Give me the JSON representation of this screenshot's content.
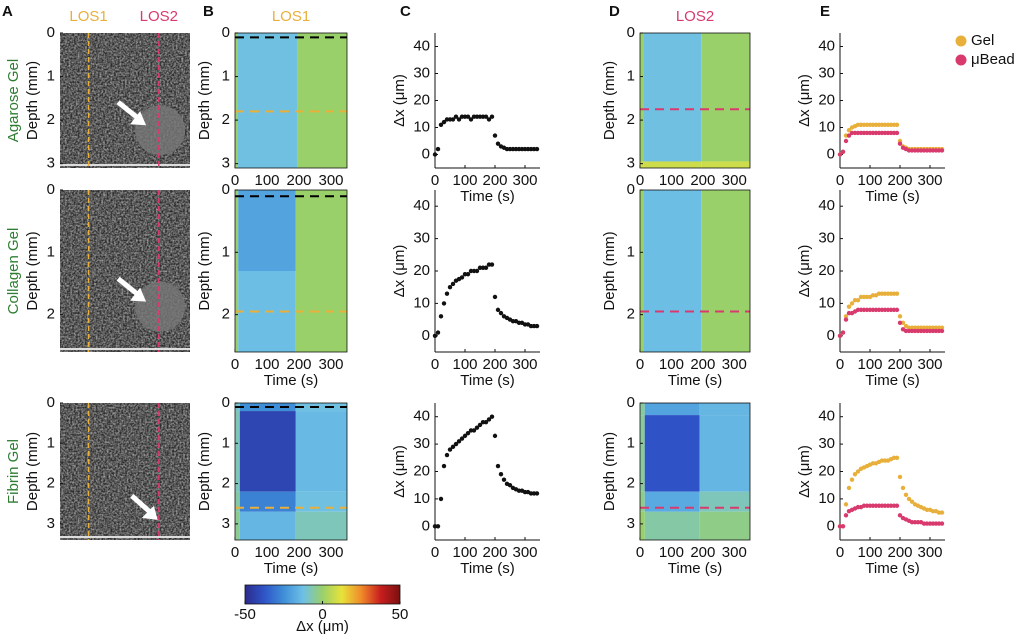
{
  "panel_labels": [
    "A",
    "B",
    "C",
    "D",
    "E"
  ],
  "chart_data": [
    {
      "type": "image",
      "row_label": "Agarose Gel",
      "ylabel": "Depth (mm)",
      "ylim": [
        0,
        3.1
      ],
      "yticks": [
        0,
        1,
        2,
        3
      ],
      "line_labels": [
        "LOS1",
        "LOS2"
      ],
      "line_colors": [
        "#e8b03a",
        "#d93a6e"
      ],
      "label_color": "#2e7d32"
    },
    {
      "type": "heatmap",
      "title": "LOS1",
      "title_color": "#e8b03a",
      "ylabel": "Depth (mm)",
      "xlabel": "Time (s)",
      "xlim": [
        0,
        350
      ],
      "xticks": [
        0,
        100,
        200,
        300
      ],
      "ylim": [
        0,
        3.1
      ],
      "yticks": [
        0,
        1,
        2,
        3
      ],
      "x_bins": [
        0,
        8,
        195,
        350
      ],
      "y_bins": [
        0,
        3.1
      ],
      "values": [
        [
          0,
          -12,
          0
        ]
      ],
      "markers": [
        {
          "value": 0.1,
          "color": "#000000"
        },
        {
          "value": 1.8,
          "color": "#e8b03a"
        }
      ]
    },
    {
      "type": "scatter",
      "ylabel": "Δx (μm)",
      "xlabel": "Time (s)",
      "xlim": [
        0,
        350
      ],
      "xticks": [
        0,
        100,
        200,
        300
      ],
      "ylim": [
        -5,
        45
      ],
      "yticks": [
        0,
        10,
        20,
        30,
        40
      ],
      "x": [
        0,
        10,
        20,
        30,
        40,
        50,
        60,
        70,
        80,
        90,
        100,
        110,
        120,
        130,
        140,
        150,
        160,
        170,
        180,
        190,
        200,
        210,
        220,
        230,
        240,
        250,
        260,
        270,
        280,
        290,
        300,
        310,
        320,
        330,
        340
      ],
      "series": [
        {
          "color": "#111111",
          "values": [
            0,
            2,
            11,
            12,
            13,
            13,
            13,
            14,
            13,
            14,
            14,
            14,
            13,
            14,
            14,
            14,
            14,
            14,
            13,
            14,
            7,
            4,
            3,
            2.5,
            2,
            2,
            2,
            2,
            2,
            2,
            2,
            2,
            2,
            2,
            2
          ]
        }
      ]
    },
    {
      "type": "heatmap",
      "title": "LOS2",
      "title_color": "#d93a6e",
      "ylabel": "Depth (mm)",
      "xlabel": "Time (s)",
      "xlim": [
        0,
        350
      ],
      "xticks": [
        0,
        100,
        200,
        300
      ],
      "ylim": [
        0,
        3.1
      ],
      "yticks": [
        0,
        1,
        2,
        3
      ],
      "x_bins": [
        0,
        10,
        195,
        350
      ],
      "y_bins": [
        0,
        2.95,
        3.1
      ],
      "values": [
        [
          0,
          -12,
          0
        ],
        [
          8,
          8,
          8
        ]
      ],
      "markers": [
        {
          "value": 1.75,
          "color": "#d93a6e"
        }
      ]
    },
    {
      "type": "scatter",
      "ylabel": "Δx (μm)",
      "xlabel": "Time (s)",
      "xlim": [
        0,
        350
      ],
      "xticks": [
        0,
        100,
        200,
        300
      ],
      "ylim": [
        -5,
        45
      ],
      "yticks": [
        0,
        10,
        20,
        30,
        40
      ],
      "legend": "upper right",
      "x": [
        0,
        10,
        20,
        30,
        40,
        50,
        60,
        70,
        80,
        90,
        100,
        110,
        120,
        130,
        140,
        150,
        160,
        170,
        180,
        190,
        200,
        210,
        220,
        230,
        240,
        250,
        260,
        270,
        280,
        290,
        300,
        310,
        320,
        330,
        340
      ],
      "series": [
        {
          "name": "Gel",
          "color": "#e8b03a",
          "values": [
            0,
            1,
            7,
            9,
            10,
            10.5,
            11,
            11,
            11,
            11,
            11,
            11,
            11,
            11,
            11,
            11,
            11,
            11,
            11,
            11,
            5,
            3,
            2.5,
            2,
            2,
            2,
            2,
            2,
            2,
            2,
            2,
            2,
            2,
            2,
            2
          ]
        },
        {
          "name": "μBead",
          "color": "#d93a6e",
          "values": [
            0,
            1,
            5,
            7,
            8,
            8,
            8,
            8,
            8,
            8,
            8,
            8,
            8,
            8,
            8,
            8,
            8,
            8,
            8,
            8,
            4,
            2.5,
            2,
            1.5,
            1.5,
            1.5,
            1.5,
            1.5,
            1.5,
            1.5,
            1.5,
            1.5,
            1.5,
            1.5,
            1.5
          ]
        }
      ]
    },
    {
      "type": "image",
      "row_label": "Collagen Gel",
      "ylabel": "Depth (mm)",
      "ylim": [
        0,
        2.6
      ],
      "yticks": [
        0,
        1,
        2
      ],
      "line_colors": [
        "#e8b03a",
        "#d93a6e"
      ],
      "label_color": "#2e7d32"
    },
    {
      "type": "heatmap",
      "ylabel": "Depth (mm)",
      "xlabel": "Time (s)",
      "xlim": [
        0,
        350
      ],
      "xticks": [
        0,
        100,
        200,
        300
      ],
      "ylim": [
        0,
        2.6
      ],
      "yticks": [
        0,
        1,
        2
      ],
      "x_bins": [
        0,
        10,
        190,
        350
      ],
      "y_bins": [
        0,
        1.3,
        2.6
      ],
      "values": [
        [
          0,
          -20,
          0
        ],
        [
          0,
          -13,
          0
        ]
      ],
      "markers": [
        {
          "value": 0.1,
          "color": "#000000"
        },
        {
          "value": 1.95,
          "color": "#e8b03a"
        }
      ]
    },
    {
      "type": "scatter",
      "ylabel": "Δx (μm)",
      "xlabel": "Time (s)",
      "xlim": [
        0,
        350
      ],
      "xticks": [
        0,
        100,
        200,
        300
      ],
      "ylim": [
        -5,
        45
      ],
      "yticks": [
        0,
        10,
        20,
        30,
        40
      ],
      "x": [
        0,
        10,
        20,
        30,
        40,
        50,
        60,
        70,
        80,
        90,
        100,
        110,
        120,
        130,
        140,
        150,
        160,
        170,
        180,
        190,
        200,
        210,
        220,
        230,
        240,
        250,
        260,
        270,
        280,
        290,
        300,
        310,
        320,
        330,
        340
      ],
      "series": [
        {
          "color": "#111111",
          "values": [
            0,
            1,
            6,
            10,
            13,
            15,
            16,
            17,
            17.5,
            18,
            19,
            19,
            20,
            20,
            20,
            21,
            21,
            21,
            22,
            22,
            12,
            8,
            7,
            6,
            5.5,
            5,
            4.5,
            4.5,
            4,
            4,
            3.5,
            3.5,
            3,
            3,
            3
          ]
        }
      ]
    },
    {
      "type": "heatmap",
      "ylabel": "Depth (mm)",
      "xlabel": "Time (s)",
      "xlim": [
        0,
        350
      ],
      "xticks": [
        0,
        100,
        200,
        300
      ],
      "ylim": [
        0,
        2.6
      ],
      "yticks": [
        0,
        1,
        2
      ],
      "x_bins": [
        0,
        10,
        195,
        350
      ],
      "y_bins": [
        0,
        2.6
      ],
      "values": [
        [
          0,
          -13,
          0
        ]
      ],
      "markers": [
        {
          "value": 1.95,
          "color": "#d93a6e"
        }
      ]
    },
    {
      "type": "scatter",
      "ylabel": "Δx (μm)",
      "xlabel": "Time (s)",
      "xlim": [
        0,
        350
      ],
      "xticks": [
        0,
        100,
        200,
        300
      ],
      "ylim": [
        -5,
        45
      ],
      "yticks": [
        0,
        10,
        20,
        30,
        40
      ],
      "x": [
        0,
        10,
        20,
        30,
        40,
        50,
        60,
        70,
        80,
        90,
        100,
        110,
        120,
        130,
        140,
        150,
        160,
        170,
        180,
        190,
        200,
        210,
        220,
        230,
        240,
        250,
        260,
        270,
        280,
        290,
        300,
        310,
        320,
        330,
        340
      ],
      "series": [
        {
          "color": "#e8b03a",
          "values": [
            0,
            1,
            6,
            9,
            10,
            11,
            11,
            12,
            12,
            12,
            12,
            12.5,
            12.5,
            13,
            13,
            13,
            13,
            13,
            13,
            13,
            6,
            4,
            3,
            2.5,
            2.5,
            2.5,
            2.5,
            2.5,
            2.5,
            2.5,
            2.5,
            2.5,
            2.5,
            2.5,
            2.5
          ]
        },
        {
          "color": "#d93a6e",
          "values": [
            0,
            1,
            5,
            7,
            7,
            7.5,
            8,
            8,
            8,
            8,
            8,
            8,
            8,
            8,
            8,
            8,
            8,
            8,
            8,
            8,
            4,
            2,
            1.5,
            1.5,
            1.5,
            1.5,
            1.5,
            1.5,
            1.5,
            1.5,
            1.5,
            1.5,
            1.5,
            1.5,
            1.5
          ]
        }
      ]
    },
    {
      "type": "image",
      "row_label": "Fibrin Gel",
      "ylabel": "Depth (mm)",
      "ylim": [
        0,
        3.4
      ],
      "yticks": [
        0,
        1,
        2,
        3
      ],
      "line_colors": [
        "#e8b03a",
        "#d93a6e"
      ],
      "label_color": "#2e7d32"
    },
    {
      "type": "heatmap",
      "ylabel": "Depth (mm)",
      "xlabel": "Time (s)",
      "xlim": [
        0,
        350
      ],
      "xticks": [
        0,
        100,
        200,
        300
      ],
      "ylim": [
        0,
        3.4
      ],
      "yticks": [
        0,
        1,
        2,
        3
      ],
      "x_bins": [
        0,
        15,
        190,
        350
      ],
      "y_bins": [
        0,
        0.2,
        2.2,
        2.7,
        3.4
      ],
      "values": [
        [
          -10,
          -25,
          -12
        ],
        [
          -8,
          -42,
          -14
        ],
        [
          -6,
          -28,
          -12
        ],
        [
          -4,
          -15,
          -8
        ]
      ],
      "markers": [
        {
          "value": 0.1,
          "color": "#000000"
        },
        {
          "value": 2.6,
          "color": "#e8b03a"
        }
      ]
    },
    {
      "type": "scatter",
      "ylabel": "Δx (μm)",
      "xlabel": "Time (s)",
      "xlim": [
        0,
        350
      ],
      "xticks": [
        0,
        100,
        200,
        300
      ],
      "ylim": [
        -5,
        45
      ],
      "yticks": [
        0,
        10,
        20,
        30,
        40
      ],
      "x": [
        0,
        10,
        20,
        30,
        40,
        50,
        60,
        70,
        80,
        90,
        100,
        110,
        120,
        130,
        140,
        150,
        160,
        170,
        180,
        190,
        200,
        210,
        220,
        230,
        240,
        250,
        260,
        270,
        280,
        290,
        300,
        310,
        320,
        330,
        340
      ],
      "series": [
        {
          "color": "#111111",
          "values": [
            0,
            0,
            10,
            22,
            26,
            28,
            29,
            30,
            31,
            32,
            33,
            34,
            35,
            35,
            36,
            37,
            38,
            38,
            39,
            40,
            33,
            22,
            19,
            17,
            15.5,
            15,
            14,
            13.5,
            13,
            13,
            12.5,
            12.5,
            12,
            12,
            12
          ]
        }
      ]
    },
    {
      "type": "heatmap",
      "ylabel": "Depth (mm)",
      "xlabel": "Time (s)",
      "xlim": [
        0,
        350
      ],
      "xticks": [
        0,
        100,
        200,
        300
      ],
      "ylim": [
        0,
        3.4
      ],
      "yticks": [
        0,
        1,
        2,
        3
      ],
      "x_bins": [
        0,
        15,
        190,
        350
      ],
      "y_bins": [
        0,
        0.3,
        2.2,
        2.7,
        3.4
      ],
      "values": [
        [
          -5,
          -20,
          -15
        ],
        [
          -5,
          -38,
          -15
        ],
        [
          -3,
          -18,
          -8
        ],
        [
          0,
          -6,
          -3
        ]
      ],
      "markers": [
        {
          "value": 2.6,
          "color": "#d93a6e"
        }
      ]
    },
    {
      "type": "scatter",
      "ylabel": "Δx (μm)",
      "xlabel": "Time (s)",
      "xlim": [
        0,
        350
      ],
      "xticks": [
        0,
        100,
        200,
        300
      ],
      "ylim": [
        -5,
        45
      ],
      "yticks": [
        0,
        10,
        20,
        30,
        40
      ],
      "x": [
        0,
        10,
        20,
        30,
        40,
        50,
        60,
        70,
        80,
        90,
        100,
        110,
        120,
        130,
        140,
        150,
        160,
        170,
        180,
        190,
        200,
        210,
        220,
        230,
        240,
        250,
        260,
        270,
        280,
        290,
        300,
        310,
        320,
        330,
        340
      ],
      "series": [
        {
          "color": "#e8b03a",
          "values": [
            0,
            0,
            8,
            14,
            17,
            19,
            20,
            21,
            21.5,
            22,
            22.5,
            23,
            23,
            23.5,
            24,
            24,
            24,
            24.5,
            25,
            25,
            18,
            14,
            11.5,
            10,
            9,
            8,
            7.5,
            7,
            6.5,
            6,
            6,
            5.5,
            5.5,
            5,
            5
          ]
        },
        {
          "color": "#d93a6e",
          "values": [
            0,
            0,
            4,
            5.5,
            6,
            6.5,
            7,
            7,
            7.5,
            7.5,
            7.5,
            7.5,
            7.5,
            7.5,
            7.5,
            7.5,
            7.5,
            7.5,
            7.5,
            7.5,
            4,
            3,
            2.5,
            2,
            1.5,
            1.5,
            1.5,
            1.5,
            1,
            1,
            1,
            1,
            1,
            1,
            1
          ]
        }
      ]
    },
    {
      "type": "colorbar",
      "xlabel": "Δx (μm)",
      "xlim": [
        -50,
        50
      ],
      "xticks": [
        -50,
        0,
        50
      ],
      "colors": [
        "#2c2b8c",
        "#2f55c8",
        "#3f8fd8",
        "#6ec0e6",
        "#9ad06a",
        "#e8e23a",
        "#f08a2a",
        "#c81e1e",
        "#7a1010"
      ]
    }
  ]
}
